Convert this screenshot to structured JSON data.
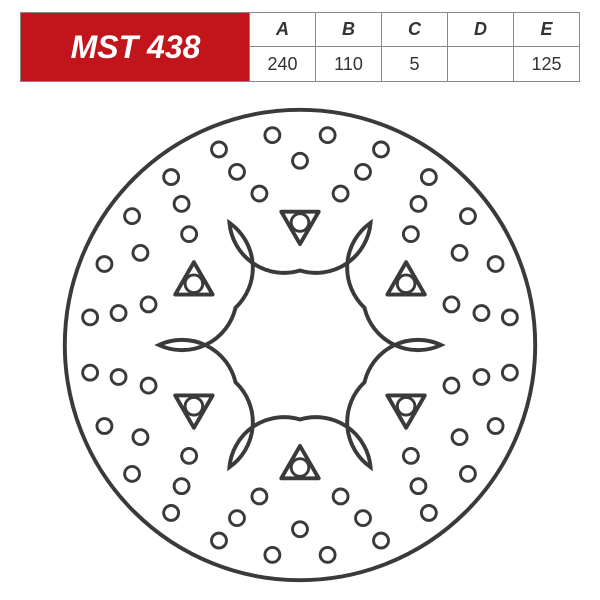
{
  "part_number": "MST 438",
  "columns": [
    "A",
    "B",
    "C",
    "D",
    "E"
  ],
  "values": [
    "240",
    "110",
    "5",
    "",
    "125"
  ],
  "colors": {
    "brand_red": "#c1151b",
    "line": "#3a3a3a",
    "bg": "#ffffff",
    "border": "#888888"
  },
  "disc": {
    "outer_diameter": 240,
    "inner_hub_diameter": 110,
    "thickness": 5,
    "bolt_circle": 125,
    "spokes": 6,
    "stroke_width": 2,
    "hole_rings": [
      {
        "radius": 108,
        "count": 24,
        "hole_r": 3.8,
        "offset_deg": 7.5
      },
      {
        "radius": 94,
        "count": 18,
        "hole_r": 3.8,
        "offset_deg": 0
      },
      {
        "radius": 80,
        "count": 12,
        "hole_r": 3.8,
        "offset_deg": 15
      }
    ],
    "mount_holes": {
      "radius": 62.5,
      "count": 6,
      "hole_r": 4.5,
      "offset_deg": 0
    }
  }
}
